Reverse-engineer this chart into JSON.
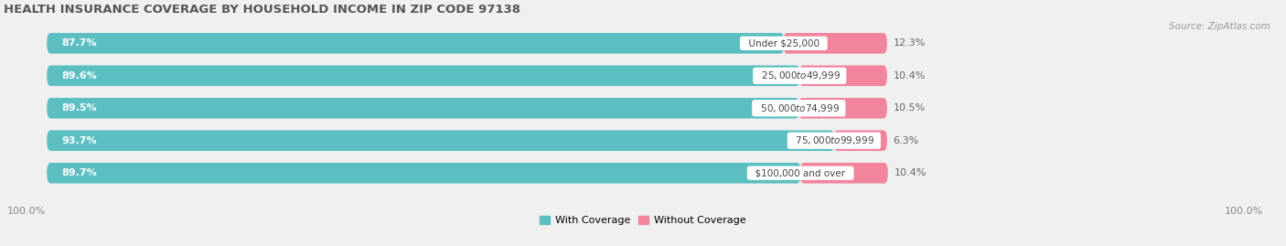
{
  "title": "HEALTH INSURANCE COVERAGE BY HOUSEHOLD INCOME IN ZIP CODE 97138",
  "source": "Source: ZipAtlas.com",
  "categories": [
    "Under $25,000",
    "$25,000 to $49,999",
    "$50,000 to $74,999",
    "$75,000 to $99,999",
    "$100,000 and over"
  ],
  "with_coverage": [
    87.7,
    89.6,
    89.5,
    93.7,
    89.7
  ],
  "without_coverage": [
    12.3,
    10.4,
    10.5,
    6.3,
    10.4
  ],
  "color_with": "#5bbfc2",
  "color_without": "#f2849e",
  "bg_color": "#f0f0f0",
  "bar_bg_color": "#e2e2e2",
  "title_fontsize": 9.5,
  "source_fontsize": 7.5,
  "bar_label_fontsize": 8,
  "category_fontsize": 7.5,
  "legend_fontsize": 8,
  "axis_label_fontsize": 8,
  "bar_height": 0.62,
  "bar_scale": 0.68,
  "x_left_label": "100.0%",
  "x_right_label": "100.0%"
}
